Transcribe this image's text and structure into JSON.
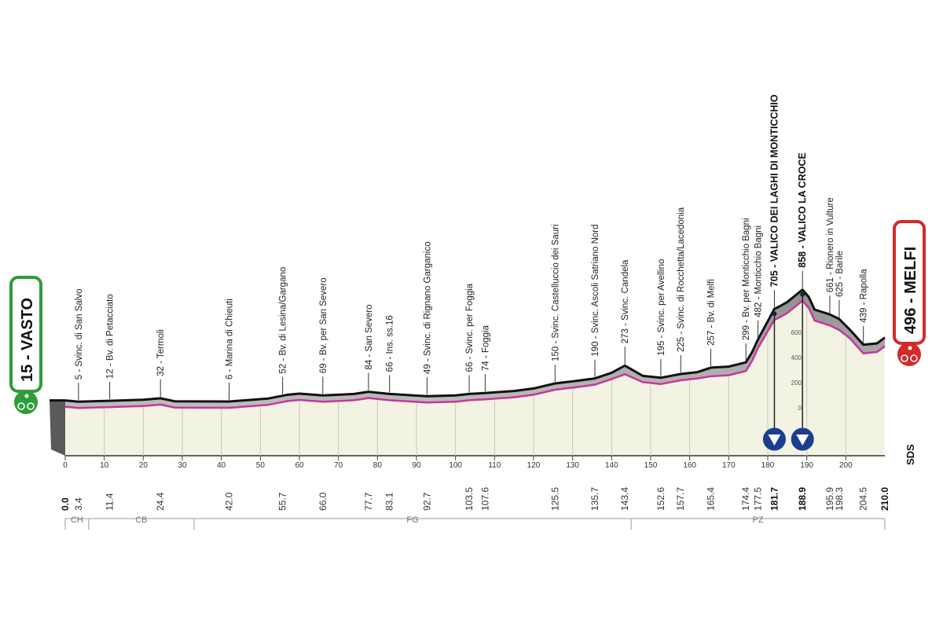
{
  "chart_data": {
    "type": "area",
    "start": {
      "label": "15 - VASTO",
      "altitude": 15,
      "name": "VASTO",
      "color": "#2e9d3a"
    },
    "finish": {
      "label": "496 - MELFI",
      "altitude": 496,
      "name": "MELFI",
      "color": "#d42a2a"
    },
    "x_axis": {
      "ticks": [
        0,
        10,
        20,
        30,
        40,
        50,
        60,
        70,
        80,
        90,
        100,
        110,
        120,
        130,
        140,
        150,
        160,
        170,
        180,
        190,
        200
      ]
    },
    "y_axis": {
      "ticks": [
        0,
        200,
        400,
        600
      ],
      "range": [
        0,
        900
      ]
    },
    "km_markers": [
      {
        "km": 0.0,
        "label": "0.0",
        "bold": true
      },
      {
        "km": 3.4,
        "label": "3.4"
      },
      {
        "km": 11.4,
        "label": "11.4"
      },
      {
        "km": 24.4,
        "label": "24.4"
      },
      {
        "km": 42.0,
        "label": "42.0"
      },
      {
        "km": 55.7,
        "label": "55.7"
      },
      {
        "km": 66.0,
        "label": "66.0"
      },
      {
        "km": 77.7,
        "label": "77.7"
      },
      {
        "km": 83.1,
        "label": "83.1"
      },
      {
        "km": 92.7,
        "label": "92.7"
      },
      {
        "km": 103.5,
        "label": "103.5"
      },
      {
        "km": 107.6,
        "label": "107.6"
      },
      {
        "km": 125.5,
        "label": "125.5"
      },
      {
        "km": 135.7,
        "label": "135.7"
      },
      {
        "km": 143.4,
        "label": "143.4"
      },
      {
        "km": 152.6,
        "label": "152.6"
      },
      {
        "km": 157.7,
        "label": "157.7"
      },
      {
        "km": 165.4,
        "label": "165.4"
      },
      {
        "km": 174.4,
        "label": "174.4"
      },
      {
        "km": 177.5,
        "label": "177.5"
      },
      {
        "km": 181.7,
        "label": "181.7",
        "bold": true
      },
      {
        "km": 188.9,
        "label": "188.9",
        "bold": true
      },
      {
        "km": 195.9,
        "label": "195.9"
      },
      {
        "km": 198.3,
        "label": "198.3"
      },
      {
        "km": 204.5,
        "label": "204.5"
      },
      {
        "km": 210.0,
        "label": "210.0",
        "bold": true
      }
    ],
    "waypoints": [
      {
        "km": 3.4,
        "label": "5 - Svinc. di San Salvo"
      },
      {
        "km": 11.4,
        "label": "12 - Bv. di Petacciato"
      },
      {
        "km": 24.4,
        "label": "32 - Termoli"
      },
      {
        "km": 42.0,
        "label": "6 - Marina di Chieuti"
      },
      {
        "km": 55.7,
        "label": "52 - Bv. di Lesina/Gargano"
      },
      {
        "km": 66.0,
        "label": "69 - Bv. per San Severo"
      },
      {
        "km": 77.7,
        "label": "84 - San Severo"
      },
      {
        "km": 83.1,
        "label": "66 - Ins. ss.16"
      },
      {
        "km": 92.7,
        "label": "49 - Svinc. di Rignano Garganico"
      },
      {
        "km": 103.5,
        "label": "66 - Svinc. per Foggia"
      },
      {
        "km": 107.6,
        "label": "74 - Foggia"
      },
      {
        "km": 125.5,
        "label": "150 - Svinc. Castelluccio dei Sauri"
      },
      {
        "km": 135.7,
        "label": "190 - Svinc. Ascoli Satriano Nord"
      },
      {
        "km": 143.4,
        "label": "273 - Svinc. Candela"
      },
      {
        "km": 152.6,
        "label": "195 - Svinc. per Avellino"
      },
      {
        "km": 157.7,
        "label": "225 - Svinc. di Rocchetta/Lacedonia"
      },
      {
        "km": 165.4,
        "label": "257 - Bv. di Melfi"
      },
      {
        "km": 174.4,
        "label": "299 - Bv. per Monticchio Bagni"
      },
      {
        "km": 177.5,
        "label": "482 - Monticchio Bagni"
      },
      {
        "km": 181.7,
        "label": "705 - VALICO DEI LAGHI DI MONTICCHIO",
        "bold": true
      },
      {
        "km": 188.9,
        "label": "858 - VALICO LA CROCE",
        "bold": true
      },
      {
        "km": 195.9,
        "label": "661 - Rionero in Vulture"
      },
      {
        "km": 198.3,
        "label": "625 - Barile"
      },
      {
        "km": 204.5,
        "label": "439 - Rapolla"
      }
    ],
    "profile": {
      "x": [
        0,
        3.4,
        11.4,
        20,
        24.4,
        28,
        42,
        52,
        55.7,
        57,
        60,
        66,
        70,
        74,
        77.7,
        83.1,
        92.7,
        100,
        103.5,
        107.6,
        115,
        120,
        125.5,
        131,
        135.7,
        140,
        143.4,
        148,
        152.6,
        157.7,
        162,
        165.4,
        170,
        174.4,
        176,
        177.5,
        181.7,
        183,
        185,
        188.9,
        190.5,
        192,
        195.9,
        198.3,
        201,
        204.5,
        208,
        210
      ],
      "y": [
        15,
        5,
        12,
        20,
        32,
        8,
        6,
        30,
        52,
        60,
        69,
        55,
        60,
        66,
        84,
        66,
        49,
        55,
        66,
        74,
        90,
        110,
        150,
        170,
        190,
        235,
        273,
        210,
        195,
        225,
        240,
        257,
        265,
        299,
        380,
        482,
        705,
        725,
        760,
        858,
        800,
        700,
        661,
        625,
        560,
        439,
        450,
        496
      ]
    },
    "kom": [
      {
        "km": 181.7,
        "category": "4"
      },
      {
        "km": 188.9,
        "category": "4"
      }
    ],
    "regions": [
      {
        "label": "CH",
        "from": 0,
        "to": 6
      },
      {
        "label": "CB",
        "from": 6,
        "to": 33
      },
      {
        "label": "FG",
        "from": 33,
        "to": 145
      },
      {
        "label": "PZ",
        "from": 145,
        "to": 210
      }
    ],
    "logo": "SDS"
  }
}
